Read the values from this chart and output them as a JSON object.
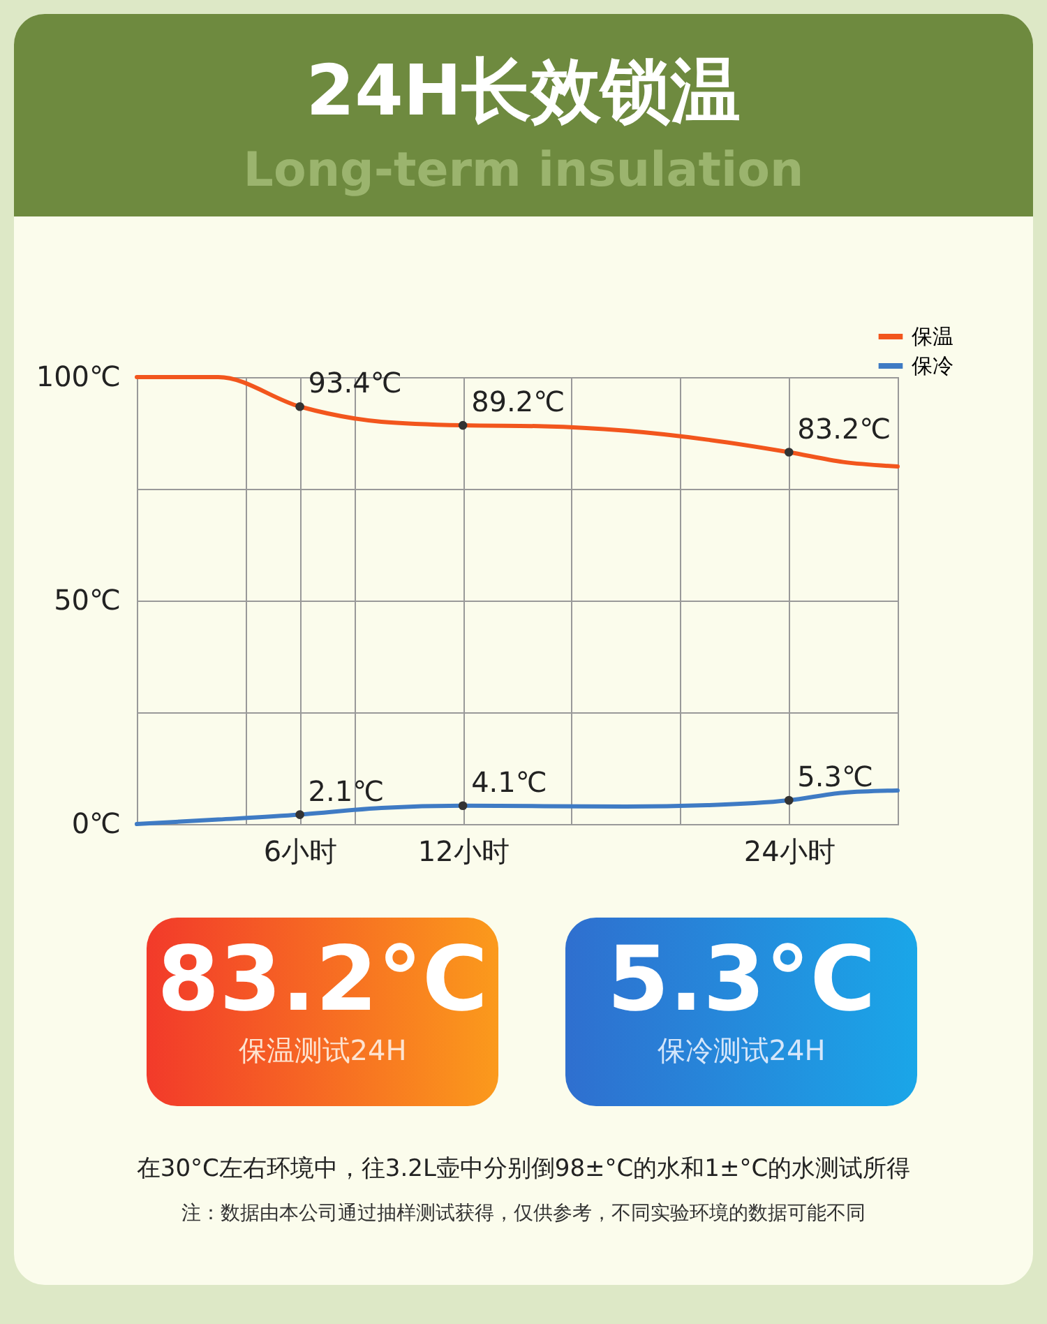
{
  "chart_data": {
    "type": "line",
    "title": "24H长效锁温",
    "subtitle": "Long-term insulation",
    "series": [
      {
        "name": "保温",
        "color": "#f2561d",
        "x": [
          0,
          3,
          6,
          9,
          12,
          15,
          18,
          21,
          24,
          26,
          28
        ],
        "values": [
          100,
          100,
          93.4,
          90,
          89.2,
          89,
          88,
          86,
          83.2,
          81,
          80
        ]
      },
      {
        "name": "保冷",
        "color": "#3f7bc4",
        "x": [
          0,
          3,
          6,
          9,
          12,
          15,
          18,
          21,
          24,
          26,
          28
        ],
        "values": [
          0,
          1,
          2.1,
          3.6,
          4.1,
          4,
          3.9,
          4.2,
          5.3,
          7,
          7.5
        ]
      }
    ],
    "xlim": [
      0,
      28
    ],
    "ylim": [
      0,
      100
    ],
    "xticks": [
      {
        "value": 0,
        "label": null
      },
      {
        "value": 4,
        "label": null
      },
      {
        "value": 6,
        "label": "6小时"
      },
      {
        "value": 8,
        "label": null
      },
      {
        "value": 12,
        "label": "12小时"
      },
      {
        "value": 16,
        "label": null
      },
      {
        "value": 20,
        "label": null
      },
      {
        "value": 24,
        "label": "24小时"
      },
      {
        "value": 28,
        "label": null
      }
    ],
    "yticks": [
      {
        "value": 0,
        "label": "0℃"
      },
      {
        "value": 25,
        "label": null
      },
      {
        "value": 50,
        "label": "50℃"
      },
      {
        "value": 75,
        "label": null
      },
      {
        "value": 100,
        "label": "100℃"
      }
    ],
    "grid": true,
    "legend": "top right",
    "annotations": [
      {
        "text": "93.4℃",
        "x": 6,
        "y": 93.4
      },
      {
        "text": "89.2℃",
        "x": 12,
        "y": 89.2
      },
      {
        "text": "83.2℃",
        "x": 24,
        "y": 83.2
      },
      {
        "text": "2.1℃",
        "x": 6,
        "y": 2.1
      },
      {
        "text": "4.1℃",
        "x": 12,
        "y": 4.1
      },
      {
        "text": "5.3℃",
        "x": 24,
        "y": 5.3
      },
      "83.2°C",
      "保温测试24H",
      "5.3°C",
      "保冷测试24H",
      "在30°C左右环境中，往3.2L壶中分别倒98±°C的水和1±°C的水测试所得",
      "注：数据由本公司通过抽样测试获得，仅供参考，不同实验环境的数据可能不同"
    ]
  }
}
